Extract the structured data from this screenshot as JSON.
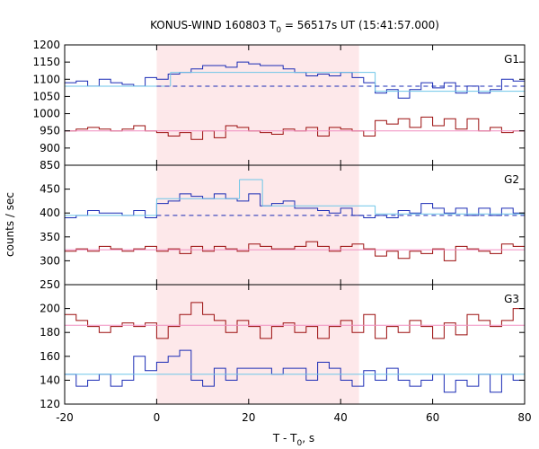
{
  "chart_data": {
    "type": "line",
    "title": "KONUS-WIND 160803 T",
    "title_sub": "0",
    "title_rest": " = 56517s UT (15:41:57.000)",
    "xlabel": "T - T",
    "xlabel_sub": "0",
    "xlabel_rest": ", s",
    "ylabel": "counts / sec",
    "xlim": [
      -20,
      80
    ],
    "x_ticks": [
      "-20",
      "0",
      "20",
      "40",
      "60",
      "80"
    ],
    "x_tick_values": [
      -20,
      0,
      20,
      40,
      60,
      80
    ],
    "shaded_interval": [
      0,
      44
    ],
    "colors": {
      "shade": "#fde8ea",
      "blue": "#1a2bb5",
      "cyan": "#6ec6e8",
      "red": "#9b0d0d",
      "pink": "#f08ec0"
    },
    "bin_edges": [
      -20,
      -17.5,
      -15,
      -12.5,
      -10,
      -7.5,
      -5,
      -2.5,
      0,
      2.5,
      5,
      7.5,
      10,
      12.5,
      15,
      17.5,
      20,
      22.5,
      25,
      27.5,
      30,
      32.5,
      35,
      37.5,
      40,
      42.5,
      45,
      47.5,
      50,
      52.5,
      55,
      57.5,
      60,
      62.5,
      65,
      67.5,
      70,
      72.5,
      75,
      77.5,
      80
    ],
    "panels": [
      {
        "label": "G1",
        "ylim": [
          850,
          1200
        ],
        "y_ticks": [
          "1200",
          "1150",
          "1100",
          "1050",
          "1000",
          "950",
          "900",
          "850"
        ],
        "y_tick_values": [
          1200,
          1150,
          1100,
          1050,
          1000,
          950,
          900,
          850
        ],
        "series": [
          {
            "color_key": "blue",
            "style": "step",
            "values": [
              1090,
              1095,
              1080,
              1100,
              1090,
              1085,
              1080,
              1105,
              1100,
              1115,
              1120,
              1130,
              1140,
              1140,
              1135,
              1150,
              1145,
              1140,
              1140,
              1130,
              1120,
              1110,
              1115,
              1110,
              1120,
              1105,
              1090,
              1060,
              1070,
              1045,
              1070,
              1090,
              1075,
              1090,
              1060,
              1080,
              1060,
              1070,
              1100,
              1095
            ]
          },
          {
            "color_key": "cyan",
            "style": "fit_line",
            "segments": [
              {
                "x": [
                  -20,
                  3
                ],
                "y": [
                  1080,
                  1080
                ]
              },
              {
                "x": [
                  3,
                  47.5
                ],
                "y": [
                  1120,
                  1120
                ]
              },
              {
                "x": [
                  47.5,
                  80
                ],
                "y": [
                  1065,
                  1065
                ]
              }
            ]
          },
          {
            "color_key": "blue",
            "style": "dashed",
            "segments": [
              {
                "x": [
                  0,
                  80
                ],
                "y": [
                  1080,
                  1080
                ]
              }
            ]
          },
          {
            "color_key": "red",
            "style": "step",
            "values": [
              950,
              955,
              960,
              955,
              950,
              955,
              965,
              950,
              945,
              935,
              945,
              925,
              950,
              930,
              965,
              960,
              950,
              945,
              940,
              955,
              950,
              960,
              935,
              960,
              955,
              950,
              935,
              980,
              970,
              985,
              960,
              990,
              965,
              985,
              955,
              985,
              950,
              960,
              945,
              950
            ]
          },
          {
            "color_key": "pink",
            "style": "fit_line",
            "segments": [
              {
                "x": [
                  -20,
                  80
                ],
                "y": [
                  950,
                  950
                ]
              }
            ]
          }
        ]
      },
      {
        "label": "G2",
        "ylim": [
          250,
          500
        ],
        "y_ticks": [
          "450",
          "400",
          "350",
          "300",
          "250"
        ],
        "y_tick_values": [
          450,
          400,
          350,
          300,
          250
        ],
        "series": [
          {
            "color_key": "blue",
            "style": "step",
            "values": [
              390,
              395,
              405,
              400,
              400,
              395,
              405,
              390,
              420,
              425,
              440,
              435,
              430,
              440,
              430,
              425,
              440,
              415,
              420,
              425,
              410,
              410,
              405,
              400,
              410,
              395,
              390,
              395,
              390,
              405,
              400,
              420,
              410,
              400,
              410,
              395,
              410,
              395,
              410,
              400
            ]
          },
          {
            "color_key": "cyan",
            "style": "fit_line",
            "segments": [
              {
                "x": [
                  -20,
                  0
                ],
                "y": [
                  395,
                  395
                ]
              },
              {
                "x": [
                  0,
                  18
                ],
                "y": [
                  430,
                  430
                ]
              },
              {
                "x": [
                  18,
                  23
                ],
                "y": [
                  470,
                  470
                ]
              },
              {
                "x": [
                  23,
                  47.5
                ],
                "y": [
                  415,
                  415
                ]
              },
              {
                "x": [
                  47.5,
                  80
                ],
                "y": [
                  398,
                  398
                ]
              }
            ]
          },
          {
            "color_key": "blue",
            "style": "dashed",
            "segments": [
              {
                "x": [
                  0,
                  80
                ],
                "y": [
                  395,
                  395
                ]
              }
            ]
          },
          {
            "color_key": "red",
            "style": "step",
            "values": [
              320,
              325,
              320,
              330,
              325,
              320,
              325,
              330,
              320,
              325,
              315,
              330,
              320,
              330,
              325,
              320,
              335,
              330,
              325,
              325,
              330,
              340,
              330,
              320,
              330,
              335,
              325,
              310,
              320,
              305,
              320,
              315,
              325,
              300,
              330,
              325,
              320,
              315,
              335,
              330
            ]
          },
          {
            "color_key": "pink",
            "style": "fit_line",
            "segments": [
              {
                "x": [
                  -20,
                  80
                ],
                "y": [
                  323,
                  323
                ]
              }
            ]
          }
        ]
      },
      {
        "label": "G3",
        "ylim": [
          120,
          220
        ],
        "y_ticks": [
          "200",
          "180",
          "160",
          "140",
          "120"
        ],
        "y_tick_values": [
          200,
          180,
          160,
          140,
          120
        ],
        "series": [
          {
            "color_key": "red",
            "style": "step",
            "values": [
              195,
              190,
              185,
              180,
              185,
              188,
              185,
              188,
              175,
              185,
              195,
              205,
              195,
              190,
              180,
              190,
              185,
              175,
              185,
              188,
              180,
              185,
              175,
              185,
              190,
              180,
              195,
              175,
              185,
              180,
              190,
              185,
              175,
              188,
              178,
              195,
              190,
              185,
              190,
              200
            ]
          },
          {
            "color_key": "pink",
            "style": "fit_line",
            "segments": [
              {
                "x": [
                  -20,
                  80
                ],
                "y": [
                  186,
                  186
                ]
              }
            ]
          },
          {
            "color_key": "blue",
            "style": "step",
            "values": [
              145,
              135,
              140,
              145,
              135,
              140,
              160,
              148,
              155,
              160,
              165,
              140,
              135,
              150,
              140,
              150,
              150,
              150,
              145,
              150,
              150,
              140,
              155,
              150,
              140,
              135,
              148,
              140,
              150,
              140,
              135,
              140,
              145,
              130,
              140,
              135,
              145,
              130,
              145,
              140
            ]
          },
          {
            "color_key": "cyan",
            "style": "fit_line",
            "segments": [
              {
                "x": [
                  -20,
                  80
                ],
                "y": [
                  145,
                  145
                ]
              }
            ]
          }
        ]
      }
    ]
  }
}
